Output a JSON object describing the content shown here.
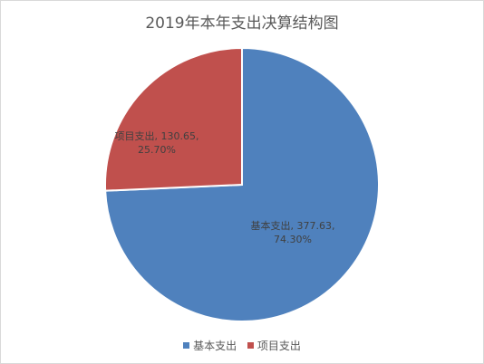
{
  "chart_data": {
    "type": "pie",
    "title": "2019年本年支出决算结构图",
    "categories": [
      "基本支出",
      "项目支出"
    ],
    "values": [
      377.63,
      130.65
    ],
    "percentages": [
      "74.30%",
      "25.70%"
    ],
    "colors": [
      "#4f81bd",
      "#c0504d"
    ],
    "data_labels": [
      {
        "line1": "基本支出, 377.63,",
        "line2": "74.30%"
      },
      {
        "line1": "项目支出, 130.65,",
        "line2": "25.70%"
      }
    ],
    "legend": [
      "基本支出",
      "项目支出"
    ],
    "legend_position": "bottom",
    "slice_border_color": "#ffffff"
  }
}
